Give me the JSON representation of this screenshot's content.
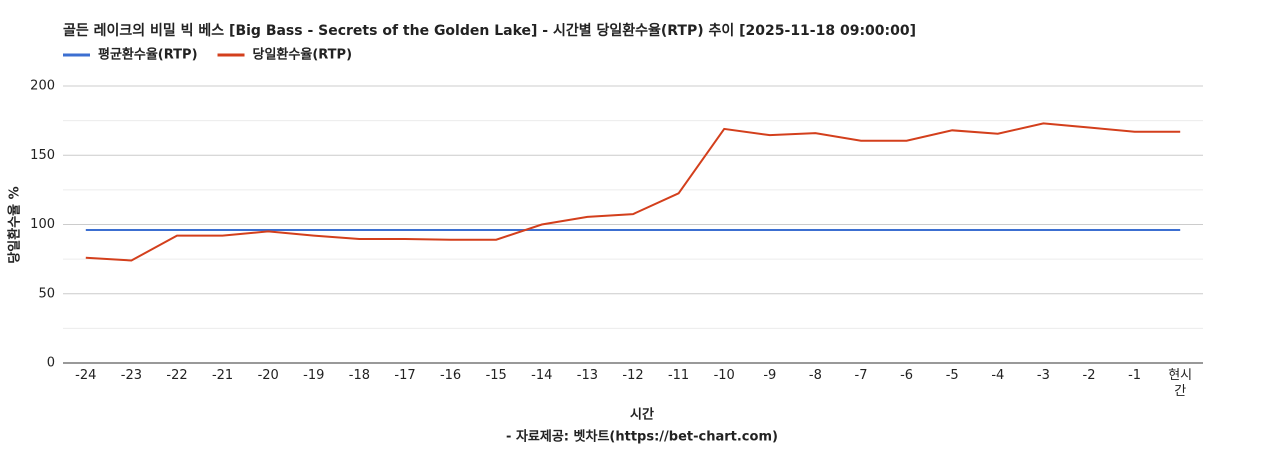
{
  "chart_data": {
    "type": "line",
    "title": "골든 레이크의 비밀 빅 베스 [Big Bass - Secrets of the Golden Lake] - 시간별 당일환수율(RTP) 추이 [2025-11-18 09:00:00]",
    "x_label": "시간",
    "y_label": "당일환수율 %",
    "source": "- 자료제공: 벳차트(https://bet-chart.com)",
    "categories": [
      "-24",
      "-23",
      "-22",
      "-21",
      "-20",
      "-19",
      "-18",
      "-17",
      "-16",
      "-15",
      "-14",
      "-13",
      "-12",
      "-11",
      "-10",
      "-9",
      "-8",
      "-7",
      "-6",
      "-5",
      "-4",
      "-3",
      "-2",
      "-1",
      "현시간"
    ],
    "series": [
      {
        "name": "평균환수율(RTP)",
        "color": "#3c6fd1",
        "values": [
          96,
          96,
          96,
          96,
          96,
          96,
          96,
          96,
          96,
          96,
          96,
          96,
          96,
          96,
          96,
          96,
          96,
          96,
          96,
          96,
          96,
          96,
          96,
          96,
          96
        ]
      },
      {
        "name": "당일환수율(RTP)",
        "color": "#d33f1c",
        "values": [
          76,
          74,
          92,
          92,
          95,
          92,
          89.5,
          89.5,
          89,
          89,
          100,
          105.5,
          107.5,
          122.5,
          169,
          164.5,
          166,
          160.5,
          160.5,
          168,
          165.5,
          173,
          170,
          167,
          167
        ]
      }
    ],
    "ylim": [
      0,
      200
    ],
    "yticks": [
      0,
      50,
      100,
      150,
      200
    ],
    "minor_yticks": [
      25,
      75,
      125,
      175
    ],
    "grid": true,
    "legend": "top-left"
  }
}
